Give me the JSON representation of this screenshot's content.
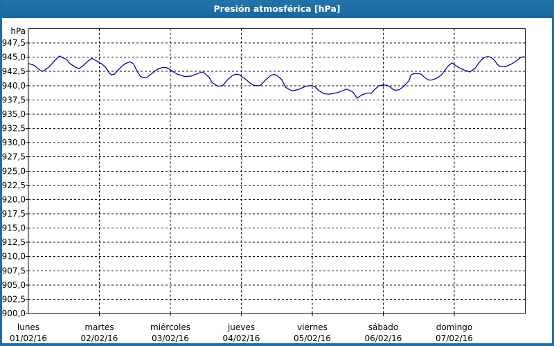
{
  "window": {
    "title": "Presión atmosférica [hPa]"
  },
  "colors": {
    "titlebar_bg": "#1c6ea4",
    "frame": "#1c6ea4",
    "title_text": "#ffffff",
    "line": "#0000a0",
    "grid": "#000000",
    "background": "#ffffff",
    "label_text": "#000000"
  },
  "chart_data": {
    "type": "line",
    "title": "Presión atmosférica [hPa]",
    "ylabel": "hPa",
    "xlabel": "",
    "grid": "dashed",
    "legend": "none",
    "ylim": [
      900,
      950
    ],
    "xlim_hours": [
      0,
      168
    ],
    "y_ticks": [
      {
        "v": 947.5,
        "label": "947,5"
      },
      {
        "v": 945.0,
        "label": "945,0"
      },
      {
        "v": 942.5,
        "label": "942,5"
      },
      {
        "v": 940.0,
        "label": "940,0"
      },
      {
        "v": 937.5,
        "label": "937,5"
      },
      {
        "v": 935.0,
        "label": "935,0"
      },
      {
        "v": 932.5,
        "label": "932,5"
      },
      {
        "v": 930.0,
        "label": "930,0"
      },
      {
        "v": 927.5,
        "label": "927,5"
      },
      {
        "v": 925.0,
        "label": "925,0"
      },
      {
        "v": 922.5,
        "label": "922,5"
      },
      {
        "v": 920.0,
        "label": "920,0"
      },
      {
        "v": 917.5,
        "label": "917,5"
      },
      {
        "v": 915.0,
        "label": "915,0"
      },
      {
        "v": 912.5,
        "label": "912,5"
      },
      {
        "v": 910.0,
        "label": "910,0"
      },
      {
        "v": 907.5,
        "label": "907,5"
      },
      {
        "v": 905.0,
        "label": "905,0"
      },
      {
        "v": 902.5,
        "label": "902,5"
      },
      {
        "v": 900.0,
        "label": "900,0"
      }
    ],
    "x_ticks": [
      {
        "hour": 0,
        "day": "lunes",
        "date": "01/02/16"
      },
      {
        "hour": 24,
        "day": "martes",
        "date": "02/02/16"
      },
      {
        "hour": 48,
        "day": "miércoles",
        "date": "03/02/16"
      },
      {
        "hour": 72,
        "day": "jueves",
        "date": "04/02/16"
      },
      {
        "hour": 96,
        "day": "viernes",
        "date": "05/02/16"
      },
      {
        "hour": 120,
        "day": "sábado",
        "date": "06/02/16"
      },
      {
        "hour": 144,
        "day": "domingo",
        "date": "07/02/16"
      }
    ],
    "series": [
      {
        "name": "Presión atmosférica",
        "color": "#0000a0",
        "points": [
          [
            0,
            943.9
          ],
          [
            1.9,
            943.6
          ],
          [
            3.7,
            942.8
          ],
          [
            4.9,
            942.5
          ],
          [
            7,
            943.3
          ],
          [
            8.7,
            944.3
          ],
          [
            10.5,
            945.2
          ],
          [
            12.9,
            944.6
          ],
          [
            14,
            943.9
          ],
          [
            15.7,
            943.3
          ],
          [
            17.1,
            943.0
          ],
          [
            18.5,
            943.5
          ],
          [
            19.9,
            944.2
          ],
          [
            21.5,
            944.8
          ],
          [
            23.2,
            944.3
          ],
          [
            24,
            944.0
          ],
          [
            24.6,
            943.9
          ],
          [
            26,
            943.3
          ],
          [
            27.4,
            942.2
          ],
          [
            28.1,
            941.9
          ],
          [
            29,
            942.0
          ],
          [
            30.6,
            942.9
          ],
          [
            32.5,
            943.8
          ],
          [
            34.4,
            944.2
          ],
          [
            35.6,
            943.8
          ],
          [
            36.7,
            942.6
          ],
          [
            37.9,
            941.6
          ],
          [
            39.1,
            941.4
          ],
          [
            40.2,
            941.5
          ],
          [
            41.9,
            942.2
          ],
          [
            43.7,
            942.9
          ],
          [
            45.4,
            943.2
          ],
          [
            46.6,
            943.2
          ],
          [
            48,
            942.8
          ],
          [
            49.4,
            942.3
          ],
          [
            50.5,
            942.0
          ],
          [
            51.7,
            941.8
          ],
          [
            52.9,
            941.6
          ],
          [
            55.2,
            941.7
          ],
          [
            57.6,
            942.2
          ],
          [
            59,
            942.4
          ],
          [
            61.1,
            941.5
          ],
          [
            62.2,
            940.5
          ],
          [
            64.1,
            939.9
          ],
          [
            65.7,
            940.0
          ],
          [
            67.1,
            940.9
          ],
          [
            68.8,
            941.7
          ],
          [
            70,
            942.0
          ],
          [
            71.6,
            941.9
          ],
          [
            72.1,
            941.6
          ],
          [
            73.5,
            941.1
          ],
          [
            74.9,
            940.5
          ],
          [
            76,
            940.1
          ],
          [
            77.2,
            940.0
          ],
          [
            78.4,
            940.0
          ],
          [
            80,
            940.9
          ],
          [
            81.7,
            941.7
          ],
          [
            83.1,
            942.0
          ],
          [
            84,
            941.8
          ],
          [
            85.6,
            941.1
          ],
          [
            87,
            939.7
          ],
          [
            88.7,
            939.2
          ],
          [
            89.4,
            939.1
          ],
          [
            91.7,
            939.4
          ],
          [
            93.8,
            939.9
          ],
          [
            95.2,
            940.0
          ],
          [
            96,
            940.0
          ],
          [
            96.9,
            939.8
          ],
          [
            98.3,
            939.1
          ],
          [
            99.9,
            938.6
          ],
          [
            101.5,
            938.5
          ],
          [
            102.9,
            938.6
          ],
          [
            104.6,
            938.8
          ],
          [
            106.2,
            939.1
          ],
          [
            107.6,
            939.4
          ],
          [
            109.3,
            939.0
          ],
          [
            110,
            938.7
          ],
          [
            111.1,
            937.8
          ],
          [
            112.8,
            938.4
          ],
          [
            114.6,
            938.7
          ],
          [
            116,
            938.7
          ],
          [
            117,
            939.3
          ],
          [
            118.6,
            940.0
          ],
          [
            119.8,
            940.1
          ],
          [
            120,
            940.1
          ],
          [
            121,
            940.1
          ],
          [
            121.9,
            939.9
          ],
          [
            123.5,
            939.3
          ],
          [
            124.2,
            939.2
          ],
          [
            125.4,
            939.3
          ],
          [
            127,
            939.9
          ],
          [
            128.7,
            940.9
          ],
          [
            129.4,
            941.9
          ],
          [
            130.3,
            942.1
          ],
          [
            132,
            942.1
          ],
          [
            132.9,
            942.0
          ],
          [
            133.8,
            941.5
          ],
          [
            135.2,
            941.0
          ],
          [
            136.4,
            941.0
          ],
          [
            138,
            941.3
          ],
          [
            139.7,
            941.9
          ],
          [
            140.8,
            942.7
          ],
          [
            142,
            943.5
          ],
          [
            143.2,
            944.0
          ],
          [
            144,
            943.7
          ],
          [
            145.8,
            943.1
          ],
          [
            147.6,
            942.7
          ],
          [
            149.3,
            942.4
          ],
          [
            151.1,
            943.1
          ],
          [
            152.3,
            944.0
          ],
          [
            153.5,
            944.7
          ],
          [
            154.4,
            945.0
          ],
          [
            155.4,
            945.1
          ],
          [
            156.3,
            945.0
          ],
          [
            157.5,
            944.5
          ],
          [
            158.6,
            943.7
          ],
          [
            159.3,
            943.4
          ],
          [
            160.5,
            943.4
          ],
          [
            161.7,
            943.4
          ],
          [
            163.3,
            943.8
          ],
          [
            164.9,
            944.3
          ],
          [
            166.3,
            944.9
          ],
          [
            167.5,
            945.1
          ]
        ]
      }
    ]
  }
}
